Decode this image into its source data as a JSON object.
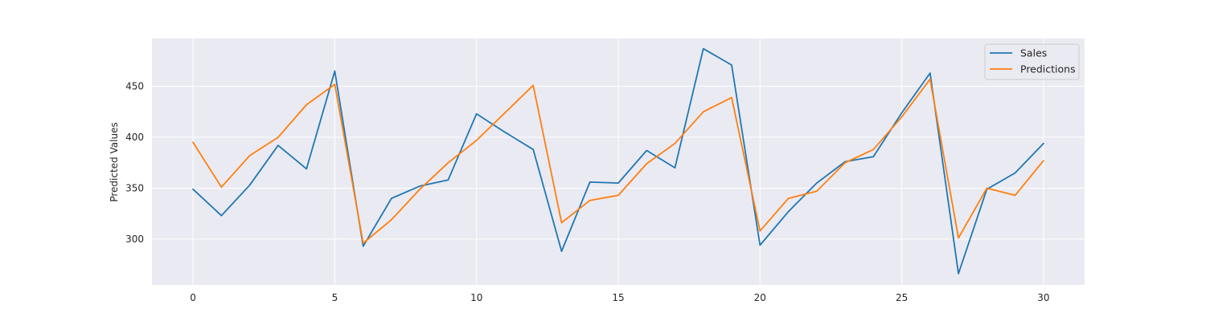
{
  "chart_data": {
    "type": "line",
    "title": "",
    "xlabel": "",
    "ylabel": "Predicted Values",
    "x": [
      0,
      1,
      2,
      3,
      4,
      5,
      6,
      7,
      8,
      9,
      10,
      11,
      12,
      13,
      14,
      15,
      16,
      17,
      18,
      19,
      20,
      21,
      22,
      23,
      24,
      25,
      26,
      27,
      28,
      29,
      30
    ],
    "xlim": [
      -1.45,
      31.45
    ],
    "ylim": [
      255,
      497
    ],
    "xticks": [
      0,
      5,
      10,
      15,
      20,
      25,
      30
    ],
    "yticks": [
      300,
      350,
      400,
      450
    ],
    "grid": true,
    "legend_position": "top-right",
    "series": [
      {
        "name": "Sales",
        "color": "#1f77b4",
        "values": [
          349,
          323,
          353,
          392,
          369,
          465,
          293,
          340,
          352,
          358,
          423,
          405,
          388,
          288,
          356,
          355,
          387,
          370,
          487,
          471,
          294,
          327,
          355,
          376,
          381,
          424,
          463,
          266,
          349,
          365,
          394
        ]
      },
      {
        "name": "Predictions",
        "color": "#ff7f0e",
        "values": [
          395,
          351,
          382,
          400,
          432,
          452,
          296,
          319,
          349,
          375,
          397,
          424,
          451,
          316,
          338,
          343,
          374,
          394,
          425,
          439,
          308,
          340,
          347,
          375,
          388,
          420,
          457,
          301,
          350,
          343,
          377
        ]
      }
    ]
  }
}
